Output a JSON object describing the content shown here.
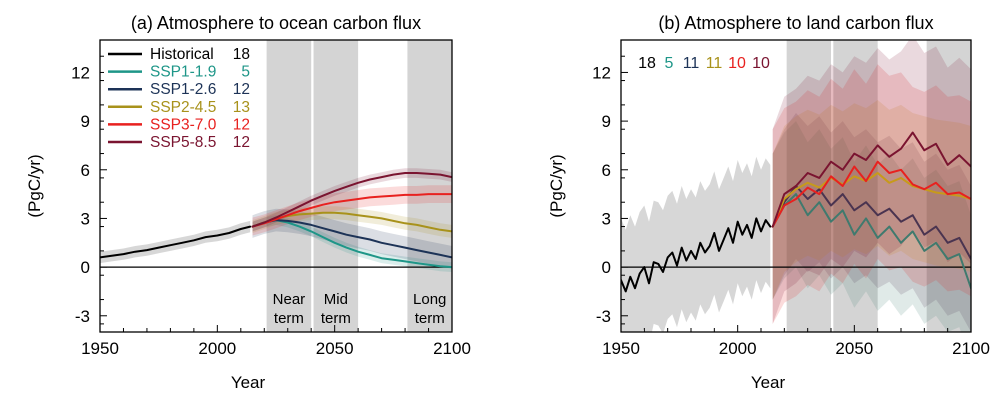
{
  "chart_data": [
    {
      "type": "line",
      "title": "(a) Atmosphere to ocean carbon flux",
      "xlabel": "Year",
      "ylabel": "(PgC/yr)",
      "xlim": [
        1950,
        2100
      ],
      "ylim": [
        -4,
        14
      ],
      "xticks": [
        "1950",
        "2000",
        "2050",
        "2100"
      ],
      "yticks": [
        "-3",
        "0",
        "3",
        "6",
        "9",
        "12"
      ],
      "legend_position": "top-left",
      "periods": [
        {
          "label": "Near term",
          "line1": "Near",
          "line2": "term",
          "start": 2021,
          "end": 2040
        },
        {
          "label": "Mid term",
          "line1": "Mid",
          "line2": "term",
          "start": 2041,
          "end": 2060
        },
        {
          "label": "Long term",
          "line1": "Long",
          "line2": "term",
          "start": 2081,
          "end": 2100
        }
      ],
      "legend": [
        {
          "name": "Historical",
          "count": "18",
          "color": "#000000"
        },
        {
          "name": "SSP1-1.9",
          "count": "5",
          "color": "#1e9688"
        },
        {
          "name": "SSP1-2.6",
          "count": "12",
          "color": "#1d3357"
        },
        {
          "name": "SSP2-4.5",
          "count": "13",
          "color": "#a8921b"
        },
        {
          "name": "SSP3-7.0",
          "count": "12",
          "color": "#e8211f"
        },
        {
          "name": "SSP5-8.5",
          "count": "12",
          "color": "#7a1430"
        }
      ],
      "series": [
        {
          "name": "Historical",
          "color": "#000000",
          "band": 0.35,
          "x": [
            1950,
            1955,
            1960,
            1965,
            1970,
            1975,
            1980,
            1985,
            1990,
            1995,
            2000,
            2005,
            2010,
            2014
          ],
          "y": [
            0.6,
            0.7,
            0.8,
            0.95,
            1.05,
            1.2,
            1.35,
            1.5,
            1.65,
            1.85,
            1.95,
            2.1,
            2.35,
            2.5
          ]
        },
        {
          "name": "SSP1-1.9",
          "color": "#1e9688",
          "band": 0.3,
          "x": [
            2015,
            2020,
            2025,
            2030,
            2035,
            2040,
            2045,
            2050,
            2055,
            2060,
            2065,
            2070,
            2075,
            2080,
            2085,
            2090,
            2095,
            2100
          ],
          "y": [
            2.5,
            2.75,
            2.9,
            2.75,
            2.5,
            2.2,
            1.85,
            1.5,
            1.2,
            0.95,
            0.75,
            0.55,
            0.45,
            0.35,
            0.25,
            0.15,
            0.05,
            0.0
          ]
        },
        {
          "name": "SSP1-2.6",
          "color": "#1d3357",
          "band": 0.7,
          "x": [
            2015,
            2020,
            2025,
            2030,
            2035,
            2040,
            2045,
            2050,
            2055,
            2060,
            2065,
            2070,
            2075,
            2080,
            2085,
            2090,
            2095,
            2100
          ],
          "y": [
            2.5,
            2.75,
            2.9,
            2.85,
            2.75,
            2.6,
            2.4,
            2.2,
            2.0,
            1.85,
            1.7,
            1.5,
            1.35,
            1.2,
            1.05,
            0.9,
            0.75,
            0.6
          ]
        },
        {
          "name": "SSP2-4.5",
          "color": "#a8921b",
          "band": 0.4,
          "x": [
            2015,
            2020,
            2025,
            2030,
            2035,
            2040,
            2045,
            2050,
            2055,
            2060,
            2065,
            2070,
            2075,
            2080,
            2085,
            2090,
            2095,
            2100
          ],
          "y": [
            2.5,
            2.75,
            3.0,
            3.15,
            3.25,
            3.3,
            3.35,
            3.35,
            3.3,
            3.2,
            3.1,
            3.0,
            2.85,
            2.7,
            2.6,
            2.45,
            2.3,
            2.2
          ]
        },
        {
          "name": "SSP3-7.0",
          "color": "#e8211f",
          "band": 0.55,
          "x": [
            2015,
            2020,
            2025,
            2030,
            2035,
            2040,
            2045,
            2050,
            2055,
            2060,
            2065,
            2070,
            2075,
            2080,
            2085,
            2090,
            2095,
            2100
          ],
          "y": [
            2.5,
            2.7,
            2.95,
            3.2,
            3.45,
            3.65,
            3.85,
            4.0,
            4.1,
            4.2,
            4.3,
            4.35,
            4.4,
            4.45,
            4.45,
            4.5,
            4.5,
            4.5
          ]
        },
        {
          "name": "SSP5-8.5",
          "color": "#7a1430",
          "band": 0.3,
          "x": [
            2015,
            2020,
            2025,
            2030,
            2035,
            2040,
            2045,
            2050,
            2055,
            2060,
            2065,
            2070,
            2075,
            2080,
            2085,
            2090,
            2095,
            2100
          ],
          "y": [
            2.5,
            2.75,
            3.05,
            3.4,
            3.75,
            4.1,
            4.4,
            4.7,
            4.95,
            5.2,
            5.4,
            5.55,
            5.7,
            5.8,
            5.8,
            5.75,
            5.7,
            5.55
          ]
        }
      ]
    },
    {
      "type": "line",
      "title": "(b) Atmosphere to land carbon flux",
      "xlabel": "Year",
      "ylabel": "(PgC/yr)",
      "xlim": [
        1950,
        2100
      ],
      "ylim": [
        -4,
        14
      ],
      "xticks": [
        "1950",
        "2000",
        "2050",
        "2100"
      ],
      "yticks": [
        "-3",
        "0",
        "3",
        "6",
        "9",
        "12"
      ],
      "periods": [
        {
          "label": "Near term",
          "start": 2021,
          "end": 2040
        },
        {
          "label": "Mid term",
          "start": 2041,
          "end": 2060
        },
        {
          "label": "Long term",
          "start": 2081,
          "end": 2100
        }
      ],
      "model_counts": [
        {
          "count": "18",
          "color": "#000000"
        },
        {
          "count": "5",
          "color": "#1e9688"
        },
        {
          "count": "11",
          "color": "#1d3357"
        },
        {
          "count": "11",
          "color": "#a8921b"
        },
        {
          "count": "10",
          "color": "#e8211f"
        },
        {
          "count": "10",
          "color": "#7a1430"
        }
      ],
      "series": [
        {
          "name": "Historical",
          "color": "#000000",
          "band": 3.8,
          "x": [
            1950,
            1952,
            1954,
            1956,
            1958,
            1960,
            1962,
            1964,
            1966,
            1968,
            1970,
            1972,
            1974,
            1976,
            1978,
            1980,
            1982,
            1984,
            1986,
            1988,
            1990,
            1992,
            1994,
            1996,
            1998,
            2000,
            2002,
            2004,
            2006,
            2008,
            2010,
            2012,
            2014
          ],
          "y": [
            -0.8,
            -1.5,
            -0.6,
            -1.3,
            -0.4,
            0.0,
            -1.0,
            0.3,
            0.2,
            -0.3,
            0.6,
            0.9,
            0.1,
            1.2,
            0.4,
            1.0,
            0.5,
            1.5,
            0.9,
            1.3,
            2.1,
            1.0,
            1.7,
            2.4,
            1.5,
            2.8,
            2.0,
            2.6,
            1.8,
            3.0,
            2.2,
            2.9,
            2.5
          ]
        },
        {
          "name": "SSP1-1.9",
          "color": "#3f7a6e",
          "band": 4.5,
          "x": [
            2015,
            2020,
            2025,
            2030,
            2035,
            2040,
            2045,
            2050,
            2055,
            2060,
            2065,
            2070,
            2075,
            2080,
            2085,
            2090,
            2095,
            2100
          ],
          "y": [
            2.5,
            3.8,
            4.5,
            3.2,
            4.0,
            2.8,
            3.5,
            2.0,
            3.0,
            1.8,
            2.5,
            1.5,
            2.2,
            1.0,
            1.5,
            0.5,
            0.8,
            -1.3
          ]
        },
        {
          "name": "SSP1-2.6",
          "color": "#4a3450",
          "band": 4.5,
          "x": [
            2015,
            2020,
            2025,
            2030,
            2035,
            2040,
            2045,
            2050,
            2055,
            2060,
            2065,
            2070,
            2075,
            2080,
            2085,
            2090,
            2095,
            2100
          ],
          "y": [
            2.5,
            4.0,
            5.0,
            4.2,
            4.8,
            3.8,
            4.5,
            3.5,
            4.0,
            3.2,
            3.6,
            2.8,
            3.2,
            2.0,
            2.5,
            1.5,
            1.8,
            0.5
          ]
        },
        {
          "name": "SSP2-4.5",
          "color": "#c79a1a",
          "band": 4.5,
          "x": [
            2015,
            2020,
            2025,
            2030,
            2035,
            2040,
            2045,
            2050,
            2055,
            2060,
            2065,
            2070,
            2075,
            2080,
            2085,
            2090,
            2095,
            2100
          ],
          "y": [
            2.5,
            4.2,
            4.8,
            5.2,
            4.9,
            5.5,
            5.1,
            5.6,
            5.3,
            5.8,
            5.2,
            5.5,
            5.0,
            4.8,
            4.6,
            4.5,
            4.4,
            4.2
          ]
        },
        {
          "name": "SSP3-7.0",
          "color": "#e8211f",
          "band": 6.0,
          "x": [
            2015,
            2020,
            2025,
            2030,
            2035,
            2040,
            2045,
            2050,
            2055,
            2060,
            2065,
            2070,
            2075,
            2080,
            2085,
            2090,
            2095,
            2100
          ],
          "y": [
            2.5,
            3.8,
            4.2,
            4.9,
            4.5,
            5.6,
            5.0,
            6.2,
            5.3,
            6.5,
            5.8,
            6.0,
            5.1,
            4.8,
            5.2,
            4.5,
            4.6,
            4.2
          ]
        },
        {
          "name": "SSP5-8.5",
          "color": "#7a1430",
          "band": 6.0,
          "x": [
            2015,
            2020,
            2025,
            2030,
            2035,
            2040,
            2045,
            2050,
            2055,
            2060,
            2065,
            2070,
            2075,
            2080,
            2085,
            2090,
            2095,
            2100
          ],
          "y": [
            2.5,
            4.5,
            5.0,
            5.8,
            5.5,
            6.5,
            6.0,
            7.0,
            6.6,
            7.5,
            6.8,
            7.3,
            8.3,
            7.2,
            7.6,
            6.3,
            6.9,
            6.2
          ]
        }
      ]
    }
  ]
}
